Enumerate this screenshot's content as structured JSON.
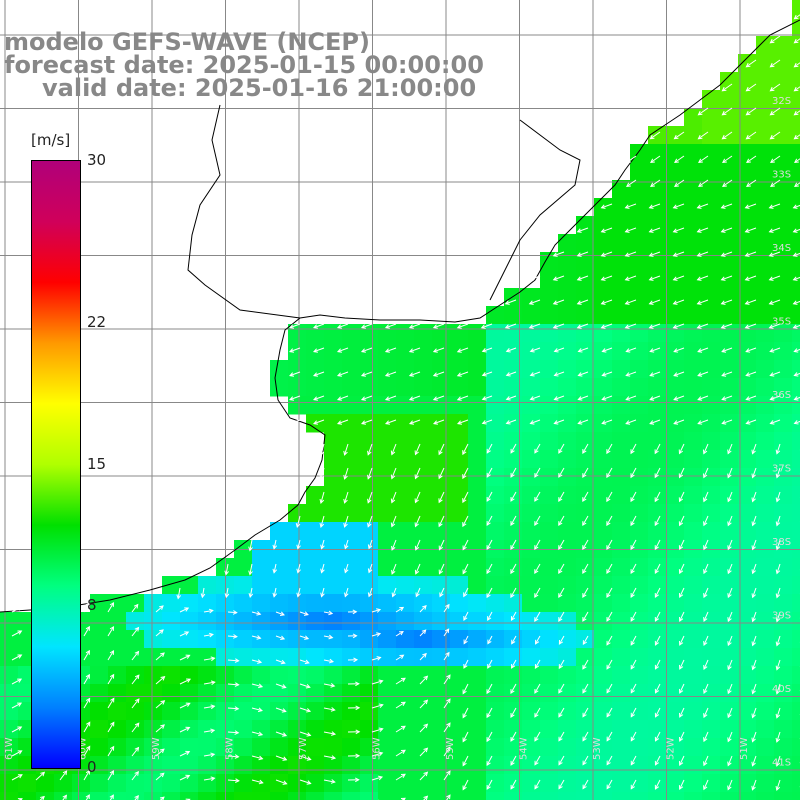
{
  "title": {
    "model": "modelo GEFS-WAVE (NCEP)",
    "forecast_date": "forecast date: 2025-01-15 00:00:00",
    "valid_date": "valid date: 2025-01-16 21:00:00"
  },
  "colorbar": {
    "units": "[m/s]",
    "tick_labels": [
      "30",
      "22",
      "15",
      "8",
      "0"
    ],
    "tick_values": [
      30,
      22,
      15,
      8,
      0
    ],
    "min": 0,
    "max": 30,
    "colors": [
      "#0000ff",
      "#0080ff",
      "#00e5ff",
      "#00ff80",
      "#00e000",
      "#b0ff00",
      "#ffff00",
      "#ff9900",
      "#ff0000",
      "#d0005a",
      "#b0007a"
    ]
  },
  "map": {
    "lat_labels": [
      "32S",
      "33S",
      "34S",
      "35S",
      "36S",
      "37S",
      "38S",
      "39S",
      "40S",
      "41S"
    ],
    "lon_labels": [
      "61W",
      "60W",
      "59W",
      "58W",
      "57W",
      "56W",
      "55W",
      "54W",
      "53W",
      "52W",
      "51W"
    ],
    "wind_field": "surface wind speed and direction"
  }
}
